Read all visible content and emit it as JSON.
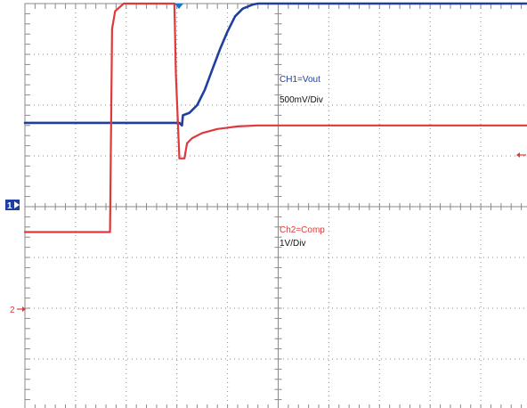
{
  "chart_data": {
    "type": "line",
    "grid": true,
    "divisions": {
      "x": 10,
      "y": 8
    },
    "background": "#ffffff",
    "grid_color": "#8a8a8a",
    "trigger_marker_color": "#1a73c9",
    "series": [
      {
        "name": "CH1=Vout",
        "scale": "500mV/Div",
        "color": "#1f3fa0",
        "marker": "1",
        "reference_div": 5.65,
        "points": [
          [
            0,
            5.65
          ],
          [
            3.05,
            5.65
          ],
          [
            3.1,
            5.6
          ],
          [
            3.12,
            5.8
          ],
          [
            3.25,
            5.85
          ],
          [
            3.4,
            6.0
          ],
          [
            3.55,
            6.3
          ],
          [
            3.7,
            6.7
          ],
          [
            3.85,
            7.1
          ],
          [
            4.0,
            7.45
          ],
          [
            4.15,
            7.75
          ],
          [
            4.3,
            7.9
          ],
          [
            4.5,
            7.98
          ],
          [
            4.6,
            8.0
          ],
          [
            10,
            8.0
          ]
        ]
      },
      {
        "name": "Ch2=Comp",
        "scale": "1V/Div",
        "color": "#e0383b",
        "marker": "2",
        "reference_div": 3.5,
        "points": [
          [
            0,
            3.5
          ],
          [
            1.68,
            3.5
          ],
          [
            1.72,
            7.5
          ],
          [
            1.78,
            7.85
          ],
          [
            1.95,
            8.0
          ],
          [
            2.95,
            8.0
          ],
          [
            2.98,
            6.6
          ],
          [
            3.05,
            4.95
          ],
          [
            3.15,
            4.95
          ],
          [
            3.2,
            5.25
          ],
          [
            3.3,
            5.35
          ],
          [
            3.5,
            5.45
          ],
          [
            3.8,
            5.53
          ],
          [
            4.2,
            5.58
          ],
          [
            4.6,
            5.6
          ],
          [
            10,
            5.6
          ]
        ]
      }
    ]
  },
  "labels": {
    "ch1_name": "CH1=Vout",
    "ch1_scale": "500mV/Div",
    "ch2_name": "Ch2=Comp",
    "ch2_scale": "1V/Div",
    "ch1_marker": "1",
    "ch2_marker": "2"
  }
}
